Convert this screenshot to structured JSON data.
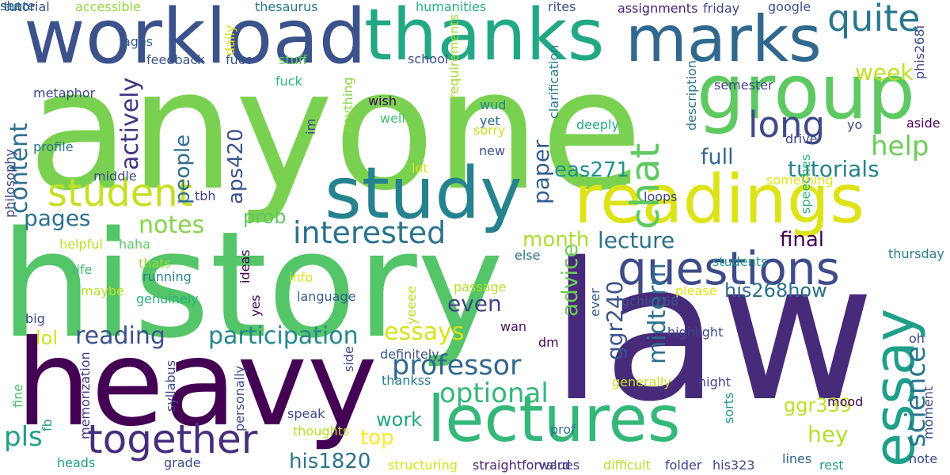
{
  "words": [
    {
      "text": "anyone",
      "color": "#7ad151"
    },
    {
      "text": "history",
      "color": "#54c568"
    },
    {
      "text": "law",
      "color": "#482a7a"
    },
    {
      "text": "heavy",
      "color": "#440154"
    },
    {
      "text": "workload",
      "color": "#3b528b"
    },
    {
      "text": "thanks",
      "color": "#22a884"
    },
    {
      "text": "marks",
      "color": "#31688e"
    },
    {
      "text": "group",
      "color": "#5ec962"
    },
    {
      "text": "readings",
      "color": "#dde318"
    },
    {
      "text": "study",
      "color": "#26828e"
    },
    {
      "text": "lectures",
      "color": "#35b779"
    },
    {
      "text": "essay",
      "color": "#1f9e89"
    },
    {
      "text": "questions",
      "color": "#3e4a89"
    },
    {
      "text": "student",
      "color": "#c5e021"
    },
    {
      "text": "together",
      "color": "#472d7b"
    },
    {
      "text": "quite",
      "color": "#2a788e"
    },
    {
      "text": "chat",
      "color": "#5ec962"
    },
    {
      "text": "long",
      "color": "#3e4989"
    },
    {
      "text": "interested",
      "color": "#2c728e"
    },
    {
      "text": "professor",
      "color": "#31688e"
    },
    {
      "text": "participation",
      "color": "#24868e"
    },
    {
      "text": "optional",
      "color": "#35b779"
    },
    {
      "text": "reading",
      "color": "#3b528b"
    },
    {
      "text": "essays",
      "color": "#d8e219"
    },
    {
      "text": "lecture",
      "color": "#2d708e"
    },
    {
      "text": "science",
      "color": "#2a768e"
    },
    {
      "text": "tutorials",
      "color": "#25848e"
    },
    {
      "text": "pages",
      "color": "#2c718e"
    },
    {
      "text": "notes",
      "color": "#84d44b"
    },
    {
      "text": "content",
      "color": "#2d708e"
    },
    {
      "text": "help",
      "color": "#6ccd5a"
    },
    {
      "text": "week",
      "color": "#c0df25"
    },
    {
      "text": "full",
      "color": "#31688e"
    },
    {
      "text": "pls",
      "color": "#1fa088"
    },
    {
      "text": "hey",
      "color": "#b5de2b"
    },
    {
      "text": "work",
      "color": "#20a486"
    },
    {
      "text": "top",
      "color": "#fde725"
    },
    {
      "text": "people",
      "color": "#2f6c8e"
    },
    {
      "text": "actively",
      "color": "#46337e"
    },
    {
      "text": "even",
      "color": "#414487"
    },
    {
      "text": "final",
      "color": "#440154"
    },
    {
      "text": "month",
      "color": "#addc30"
    },
    {
      "text": "paper",
      "color": "#355f8d"
    },
    {
      "text": "eas271",
      "color": "#21918c"
    },
    {
      "text": "aps420",
      "color": "#3b528b"
    },
    {
      "text": "prob",
      "color": "#5ec962"
    },
    {
      "text": "his268how",
      "color": "#2d708e"
    },
    {
      "text": "advice",
      "color": "#6ece58"
    },
    {
      "text": "ggr240",
      "color": "#3a548c"
    },
    {
      "text": "midterm",
      "color": "#2e6f8e"
    },
    {
      "text": "ggr339",
      "color": "#c2df23"
    },
    {
      "text": "his1820",
      "color": "#2d718e"
    },
    {
      "text": "lol",
      "color": "#d2e21b"
    },
    {
      "text": "tutorial",
      "color": "#3b528b"
    },
    {
      "text": "accessible",
      "color": "#95d840"
    },
    {
      "text": "thesaurus",
      "color": "#2a768e"
    },
    {
      "text": "humanities",
      "color": "#29af7f"
    },
    {
      "text": "rites",
      "color": "#3c4f8a"
    },
    {
      "text": "assignments",
      "color": "#482475"
    },
    {
      "text": "friday",
      "color": "#3e4989"
    },
    {
      "text": "google",
      "color": "#3c508b"
    },
    {
      "text": "ages",
      "color": "#355f8d"
    },
    {
      "text": "daily",
      "color": "#dde318"
    },
    {
      "text": "feedback",
      "color": "#3b528b"
    },
    {
      "text": "fucc",
      "color": "#38588c"
    },
    {
      "text": "stuff",
      "color": "#5ec962"
    },
    {
      "text": "school",
      "color": "#3e4a89"
    },
    {
      "text": "semester",
      "color": "#3f4788"
    },
    {
      "text": "phis268i",
      "color": "#3e4989"
    },
    {
      "text": "metaphor",
      "color": "#3f4788"
    },
    {
      "text": "fuck",
      "color": "#2fb47c"
    },
    {
      "text": "wish",
      "color": "#440154"
    },
    {
      "text": "requirements",
      "color": "#a5db36"
    },
    {
      "text": "wud",
      "color": "#238a8d"
    },
    {
      "text": "clarification",
      "color": "#287c8e"
    },
    {
      "text": "description",
      "color": "#2d708e"
    },
    {
      "text": "well",
      "color": "#40bd72"
    },
    {
      "text": "yet",
      "color": "#33638d"
    },
    {
      "text": "sorry",
      "color": "#c8e020"
    },
    {
      "text": "aside",
      "color": "#440154"
    },
    {
      "text": "yo",
      "color": "#3f4788"
    },
    {
      "text": "deeply",
      "color": "#22a884"
    },
    {
      "text": "philosophy",
      "color": "#3f4788"
    },
    {
      "text": "anything",
      "color": "#8bd646"
    },
    {
      "text": "im",
      "color": "#3e4989"
    },
    {
      "text": "new",
      "color": "#3c4f8a"
    },
    {
      "text": "drive",
      "color": "#3e4989"
    },
    {
      "text": "profile",
      "color": "#2d708e"
    },
    {
      "text": "middle",
      "color": "#3e4a89"
    },
    {
      "text": "lot",
      "color": "#dde318"
    },
    {
      "text": "something",
      "color": "#e5e419"
    },
    {
      "text": "tbh",
      "color": "#424086"
    },
    {
      "text": "loops",
      "color": "#3f4788"
    },
    {
      "text": "speeches",
      "color": "#31b57b"
    },
    {
      "text": "helpful",
      "color": "#b8de29"
    },
    {
      "text": "haha",
      "color": "#5ec962"
    },
    {
      "text": "students",
      "color": "#1f988b"
    },
    {
      "text": "thats",
      "color": "#9bd93c"
    },
    {
      "text": "ideas",
      "color": "#440154"
    },
    {
      "text": "else",
      "color": "#2c718e"
    },
    {
      "text": "thursday",
      "color": "#277f8e"
    },
    {
      "text": "life",
      "color": "#3dbc74"
    },
    {
      "text": "running",
      "color": "#26828e"
    },
    {
      "text": "maybe",
      "color": "#b8de29"
    },
    {
      "text": "yes",
      "color": "#440154"
    },
    {
      "text": "info",
      "color": "#dde318"
    },
    {
      "text": "passage",
      "color": "#b5de2b"
    },
    {
      "text": "yeeee",
      "color": "#c0df25"
    },
    {
      "text": "please",
      "color": "#dde318"
    },
    {
      "text": "genuinely",
      "color": "#2ab07f"
    },
    {
      "text": "language",
      "color": "#365c8d"
    },
    {
      "text": "gchis268",
      "color": "#3b528b"
    },
    {
      "text": "ever",
      "color": "#38588c"
    },
    {
      "text": "big",
      "color": "#3e4a89"
    },
    {
      "text": "wan",
      "color": "#481467"
    },
    {
      "text": "fine",
      "color": "#4ac16d"
    },
    {
      "text": "side",
      "color": "#3e4989"
    },
    {
      "text": "definitely",
      "color": "#3b528b"
    },
    {
      "text": "dm",
      "color": "#440154"
    },
    {
      "text": "highlight",
      "color": "#3e4989"
    },
    {
      "text": "oh",
      "color": "#3f4788"
    },
    {
      "text": "sorts",
      "color": "#1f9a8a"
    },
    {
      "text": "fb",
      "color": "#1f988b"
    },
    {
      "text": "memorization",
      "color": "#46337e"
    },
    {
      "text": "syllabus",
      "color": "#3e4989"
    },
    {
      "text": "personally",
      "color": "#3e4a89"
    },
    {
      "text": "thankss",
      "color": "#2a788e"
    },
    {
      "text": "generally",
      "color": "#c2df23"
    },
    {
      "text": "night",
      "color": "#3f4788"
    },
    {
      "text": "mood",
      "color": "#440154"
    },
    {
      "text": "moment",
      "color": "#3e4989"
    },
    {
      "text": "speak",
      "color": "#3f4788"
    },
    {
      "text": "thoughts",
      "color": "#bade28"
    },
    {
      "text": "prof",
      "color": "#2d708e"
    },
    {
      "text": "heads",
      "color": "#1f9e89"
    },
    {
      "text": "grade",
      "color": "#3e4989"
    },
    {
      "text": "structuring",
      "color": "#d8e219"
    },
    {
      "text": "straightforward",
      "color": "#482475"
    },
    {
      "text": "values",
      "color": "#3f4788"
    },
    {
      "text": "difficult",
      "color": "#b5de2b"
    },
    {
      "text": "folder",
      "color": "#3f4788"
    },
    {
      "text": "his323",
      "color": "#3e4989"
    },
    {
      "text": "lines",
      "color": "#33638d"
    },
    {
      "text": "rest",
      "color": "#1f9e89"
    },
    {
      "text": "note",
      "color": "#3e4989"
    },
    {
      "text": "share",
      "color": "#38588c"
    },
    {
      "text": "sent",
      "color": "#2d708e"
    }
  ]
}
